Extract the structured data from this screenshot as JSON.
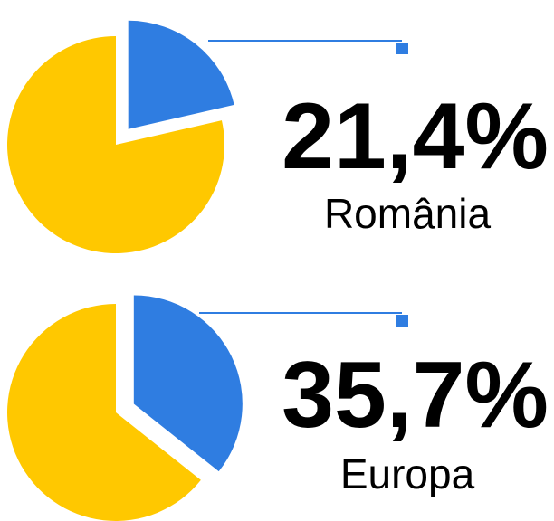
{
  "chart_data": [
    {
      "type": "pie",
      "title": "România",
      "values": [
        21.4,
        78.6
      ],
      "value_labels": [
        "21,4%",
        null
      ],
      "colors": [
        "#2f7de1",
        "#ffc800"
      ]
    },
    {
      "type": "pie",
      "title": "Europa",
      "values": [
        35.7,
        64.3
      ],
      "value_labels": [
        "35,7%",
        null
      ],
      "colors": [
        "#2f7de1",
        "#ffc800"
      ]
    }
  ]
}
